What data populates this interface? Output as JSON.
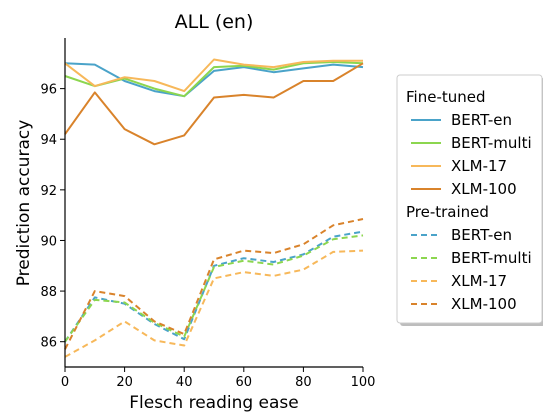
{
  "chart_data": {
    "type": "line",
    "title": "ALL (en)",
    "xlabel": "Flesch reading ease",
    "ylabel": "Prediction accuracy",
    "xlim": [
      0,
      100
    ],
    "ylim": [
      85,
      98
    ],
    "xticks": [
      "0",
      "20",
      "40",
      "60",
      "80",
      "100"
    ],
    "yticks": [
      "86",
      "88",
      "90",
      "92",
      "94",
      "96"
    ],
    "grid": false,
    "legend_position": "right",
    "x": [
      0,
      10,
      20,
      30,
      40,
      50,
      60,
      70,
      80,
      90,
      100
    ],
    "groups": [
      {
        "name": "Fine-tuned",
        "line_style": "solid",
        "series": [
          {
            "name": "BERT-en",
            "color": "#4aa3c9",
            "values": [
              97.0,
              96.95,
              96.3,
              95.9,
              95.7,
              96.7,
              96.85,
              96.65,
              96.8,
              96.95,
              96.85
            ]
          },
          {
            "name": "BERT-multi",
            "color": "#8cd64f",
            "values": [
              96.5,
              96.1,
              96.4,
              96.0,
              95.7,
              96.85,
              96.9,
              96.75,
              97.0,
              97.05,
              97.0
            ]
          },
          {
            "name": "XLM-17",
            "color": "#f7b85a",
            "values": [
              97.0,
              96.1,
              96.45,
              96.3,
              95.9,
              97.15,
              96.95,
              96.85,
              97.05,
              97.1,
              97.1
            ]
          },
          {
            "name": "XLM-100",
            "color": "#d9832b",
            "values": [
              94.2,
              95.85,
              94.4,
              93.8,
              94.15,
              95.65,
              95.75,
              95.65,
              96.3,
              96.3,
              97.0
            ]
          }
        ]
      },
      {
        "name": "Pre-trained",
        "line_style": "dashed",
        "series": [
          {
            "name": "BERT-en",
            "color": "#4aa3c9",
            "values": [
              86.0,
              87.75,
              87.5,
              86.7,
              86.1,
              89.0,
              89.3,
              89.15,
              89.45,
              90.15,
              90.35
            ]
          },
          {
            "name": "BERT-multi",
            "color": "#8cd64f",
            "values": [
              86.0,
              87.65,
              87.55,
              86.75,
              86.2,
              88.95,
              89.2,
              89.05,
              89.4,
              90.05,
              90.2
            ]
          },
          {
            "name": "XLM-17",
            "color": "#f7b85a",
            "values": [
              85.4,
              86.05,
              86.8,
              86.05,
              85.85,
              88.5,
              88.75,
              88.6,
              88.85,
              89.55,
              89.6
            ]
          },
          {
            "name": "XLM-100",
            "color": "#d9832b",
            "values": [
              85.7,
              88.0,
              87.8,
              86.8,
              86.3,
              89.25,
              89.6,
              89.5,
              89.85,
              90.6,
              90.85
            ]
          }
        ]
      }
    ]
  }
}
